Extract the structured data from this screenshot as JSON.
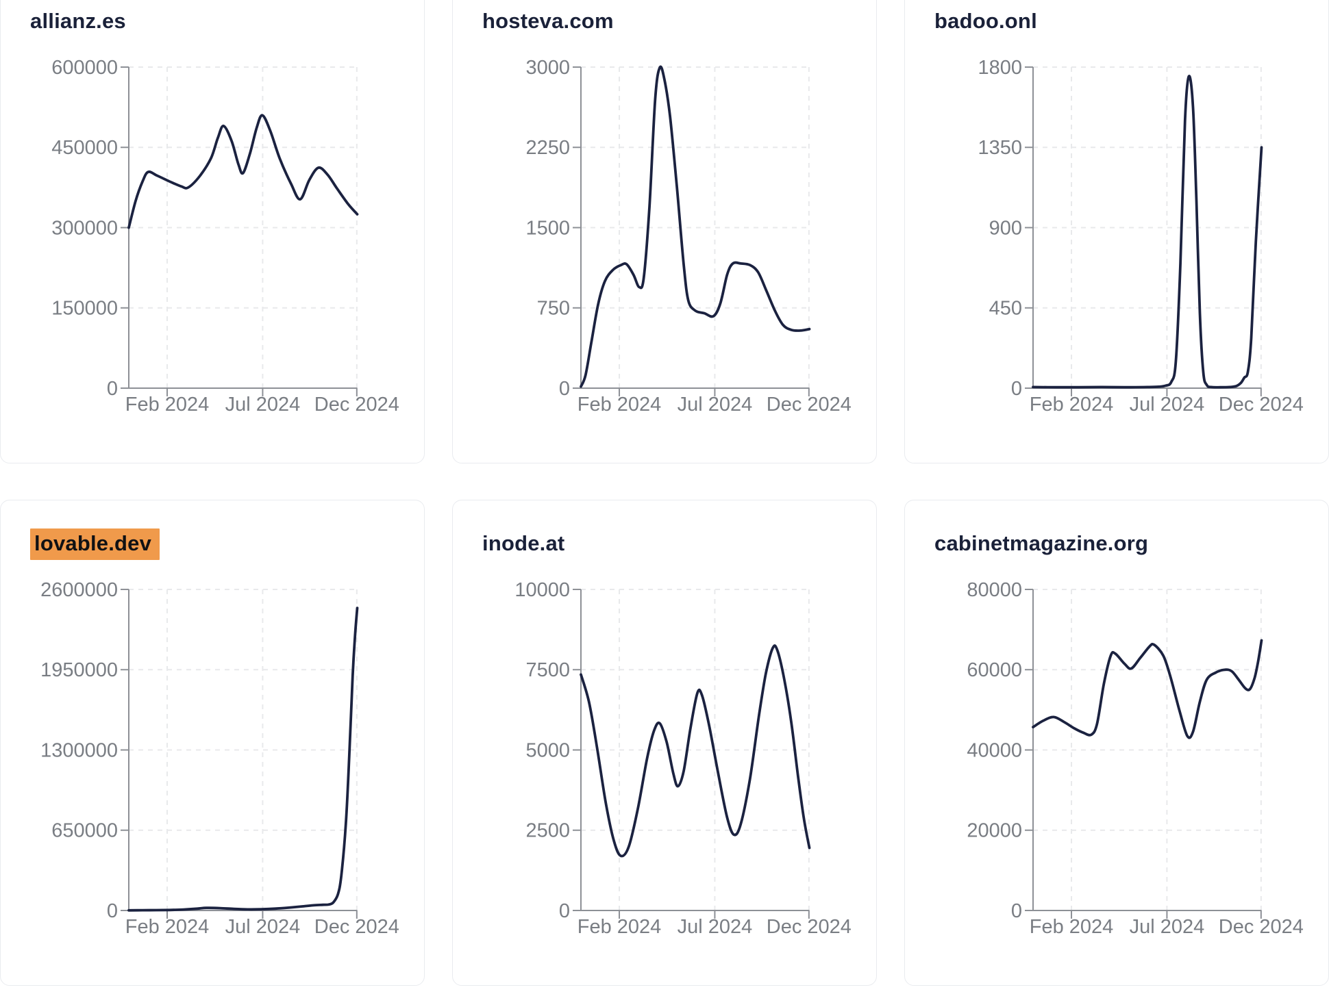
{
  "page": {
    "background": "#ffffff"
  },
  "chart_style": {
    "line_color": "#1b2240",
    "axis_color": "#8d9096",
    "grid_color": "#e8e9eb",
    "tick_label_color": "#797d83",
    "title_color": "#1a2139",
    "highlight_color": "#f09a4b",
    "card_border_color": "#e9ebef"
  },
  "chart_data": [
    {
      "type": "line",
      "title": "allianz.es",
      "highlighted": false,
      "xlabel": "",
      "ylabel": "",
      "ylim": [
        0,
        600000
      ],
      "y_ticks": [
        0,
        150000,
        300000,
        450000,
        600000
      ],
      "x_ticks": [
        "Feb 2024",
        "Jul 2024",
        "Dec 2024"
      ],
      "grid": true,
      "points": [
        [
          0,
          300000
        ],
        [
          0.03,
          350000
        ],
        [
          0.06,
          386000
        ],
        [
          0.085,
          404000
        ],
        [
          0.125,
          397000
        ],
        [
          0.18,
          386000
        ],
        [
          0.23,
          377000
        ],
        [
          0.26,
          375000
        ],
        [
          0.31,
          396000
        ],
        [
          0.36,
          430000
        ],
        [
          0.39,
          468000
        ],
        [
          0.415,
          490000
        ],
        [
          0.45,
          462000
        ],
        [
          0.48,
          418000
        ],
        [
          0.5,
          402000
        ],
        [
          0.53,
          438000
        ],
        [
          0.56,
          487000
        ],
        [
          0.585,
          510000
        ],
        [
          0.62,
          480000
        ],
        [
          0.66,
          430000
        ],
        [
          0.71,
          382000
        ],
        [
          0.75,
          353000
        ],
        [
          0.79,
          389000
        ],
        [
          0.83,
          412000
        ],
        [
          0.87,
          399000
        ],
        [
          0.91,
          374000
        ],
        [
          0.96,
          344000
        ],
        [
          1,
          325000
        ]
      ]
    },
    {
      "type": "line",
      "title": "hosteva.com",
      "highlighted": false,
      "xlabel": "",
      "ylabel": "",
      "ylim": [
        0,
        3000
      ],
      "y_ticks": [
        0,
        750,
        1500,
        2250,
        3000
      ],
      "x_ticks": [
        "Feb 2024",
        "Jul 2024",
        "Dec 2024"
      ],
      "grid": true,
      "points": [
        [
          0,
          15
        ],
        [
          0.02,
          120
        ],
        [
          0.045,
          420
        ],
        [
          0.075,
          780
        ],
        [
          0.105,
          1000
        ],
        [
          0.14,
          1105
        ],
        [
          0.175,
          1150
        ],
        [
          0.2,
          1158
        ],
        [
          0.23,
          1060
        ],
        [
          0.255,
          945
        ],
        [
          0.275,
          1030
        ],
        [
          0.3,
          1700
        ],
        [
          0.325,
          2700
        ],
        [
          0.345,
          2995
        ],
        [
          0.365,
          2890
        ],
        [
          0.39,
          2540
        ],
        [
          0.42,
          1880
        ],
        [
          0.45,
          1150
        ],
        [
          0.47,
          820
        ],
        [
          0.5,
          725
        ],
        [
          0.54,
          700
        ],
        [
          0.58,
          672
        ],
        [
          0.61,
          790
        ],
        [
          0.64,
          1060
        ],
        [
          0.665,
          1165
        ],
        [
          0.7,
          1165
        ],
        [
          0.74,
          1150
        ],
        [
          0.775,
          1085
        ],
        [
          0.81,
          920
        ],
        [
          0.85,
          720
        ],
        [
          0.885,
          590
        ],
        [
          0.92,
          545
        ],
        [
          0.96,
          538
        ],
        [
          1,
          552
        ]
      ]
    },
    {
      "type": "line",
      "title": "badoo.onl",
      "highlighted": false,
      "xlabel": "",
      "ylabel": "",
      "ylim": [
        0,
        1800
      ],
      "y_ticks": [
        0,
        450,
        900,
        1350,
        1800
      ],
      "x_ticks": [
        "Feb 2024",
        "Jul 2024",
        "Dec 2024"
      ],
      "grid": true,
      "points": [
        [
          0,
          6
        ],
        [
          0.1,
          5
        ],
        [
          0.2,
          5
        ],
        [
          0.3,
          6
        ],
        [
          0.4,
          5
        ],
        [
          0.5,
          6
        ],
        [
          0.55,
          8
        ],
        [
          0.58,
          14
        ],
        [
          0.605,
          35
        ],
        [
          0.625,
          150
        ],
        [
          0.645,
          700
        ],
        [
          0.665,
          1500
        ],
        [
          0.682,
          1748
        ],
        [
          0.7,
          1580
        ],
        [
          0.715,
          1050
        ],
        [
          0.73,
          420
        ],
        [
          0.745,
          90
        ],
        [
          0.76,
          18
        ],
        [
          0.78,
          6
        ],
        [
          0.82,
          5
        ],
        [
          0.86,
          6
        ],
        [
          0.89,
          12
        ],
        [
          0.91,
          30
        ],
        [
          0.925,
          60
        ],
        [
          0.94,
          90
        ],
        [
          0.955,
          280
        ],
        [
          0.975,
          820
        ],
        [
          1,
          1350
        ]
      ]
    },
    {
      "type": "line",
      "title": "lovable.dev",
      "highlighted": true,
      "xlabel": "",
      "ylabel": "",
      "ylim": [
        0,
        2600000
      ],
      "y_ticks": [
        0,
        650000,
        1300000,
        1950000,
        2600000
      ],
      "x_ticks": [
        "Feb 2024",
        "Jul 2024",
        "Dec 2024"
      ],
      "grid": true,
      "points": [
        [
          0,
          1000
        ],
        [
          0.06,
          2000
        ],
        [
          0.12,
          3000
        ],
        [
          0.18,
          4000
        ],
        [
          0.24,
          8000
        ],
        [
          0.3,
          15000
        ],
        [
          0.34,
          21000
        ],
        [
          0.4,
          19000
        ],
        [
          0.46,
          13000
        ],
        [
          0.52,
          9000
        ],
        [
          0.58,
          10000
        ],
        [
          0.64,
          15000
        ],
        [
          0.7,
          23000
        ],
        [
          0.76,
          33000
        ],
        [
          0.81,
          42000
        ],
        [
          0.85,
          46000
        ],
        [
          0.875,
          48000
        ],
        [
          0.895,
          65000
        ],
        [
          0.915,
          130000
        ],
        [
          0.93,
          280000
        ],
        [
          0.95,
          700000
        ],
        [
          0.965,
          1250000
        ],
        [
          0.98,
          1900000
        ],
        [
          0.99,
          2220000
        ],
        [
          1,
          2450000
        ]
      ]
    },
    {
      "type": "line",
      "title": "inode.at",
      "highlighted": false,
      "xlabel": "",
      "ylabel": "",
      "ylim": [
        0,
        10000
      ],
      "y_ticks": [
        0,
        2500,
        5000,
        7500,
        10000
      ],
      "x_ticks": [
        "Feb 2024",
        "Jul 2024",
        "Dec 2024"
      ],
      "grid": true,
      "points": [
        [
          0,
          7350
        ],
        [
          0.035,
          6500
        ],
        [
          0.07,
          5100
        ],
        [
          0.11,
          3300
        ],
        [
          0.145,
          2150
        ],
        [
          0.175,
          1700
        ],
        [
          0.21,
          2000
        ],
        [
          0.25,
          3200
        ],
        [
          0.29,
          4750
        ],
        [
          0.32,
          5600
        ],
        [
          0.345,
          5830
        ],
        [
          0.375,
          5250
        ],
        [
          0.405,
          4250
        ],
        [
          0.425,
          3870
        ],
        [
          0.45,
          4350
        ],
        [
          0.48,
          5700
        ],
        [
          0.51,
          6780
        ],
        [
          0.53,
          6700
        ],
        [
          0.56,
          5800
        ],
        [
          0.6,
          4300
        ],
        [
          0.64,
          2900
        ],
        [
          0.67,
          2360
        ],
        [
          0.7,
          2700
        ],
        [
          0.74,
          4100
        ],
        [
          0.78,
          6100
        ],
        [
          0.81,
          7400
        ],
        [
          0.84,
          8180
        ],
        [
          0.86,
          8100
        ],
        [
          0.89,
          7200
        ],
        [
          0.92,
          5900
        ],
        [
          0.95,
          4200
        ],
        [
          0.975,
          2900
        ],
        [
          1,
          1950
        ]
      ]
    },
    {
      "type": "line",
      "title": "cabinetmagazine.org",
      "highlighted": false,
      "xlabel": "",
      "ylabel": "",
      "ylim": [
        0,
        80000
      ],
      "y_ticks": [
        0,
        20000,
        40000,
        60000,
        80000
      ],
      "x_ticks": [
        "Feb 2024",
        "Jul 2024",
        "Dec 2024"
      ],
      "grid": true,
      "points": [
        [
          0,
          45700
        ],
        [
          0.045,
          47300
        ],
        [
          0.09,
          48200
        ],
        [
          0.135,
          47000
        ],
        [
          0.18,
          45400
        ],
        [
          0.22,
          44300
        ],
        [
          0.255,
          43800
        ],
        [
          0.28,
          46500
        ],
        [
          0.31,
          56500
        ],
        [
          0.34,
          63500
        ],
        [
          0.36,
          64000
        ],
        [
          0.4,
          61500
        ],
        [
          0.43,
          60300
        ],
        [
          0.47,
          63000
        ],
        [
          0.51,
          65800
        ],
        [
          0.53,
          66200
        ],
        [
          0.57,
          63500
        ],
        [
          0.6,
          58500
        ],
        [
          0.64,
          50000
        ],
        [
          0.675,
          43500
        ],
        [
          0.7,
          44500
        ],
        [
          0.73,
          52000
        ],
        [
          0.76,
          57500
        ],
        [
          0.8,
          59300
        ],
        [
          0.84,
          60000
        ],
        [
          0.87,
          59600
        ],
        [
          0.9,
          57500
        ],
        [
          0.93,
          55300
        ],
        [
          0.95,
          55200
        ],
        [
          0.97,
          58000
        ],
        [
          0.985,
          62000
        ],
        [
          1,
          67300
        ]
      ]
    }
  ]
}
